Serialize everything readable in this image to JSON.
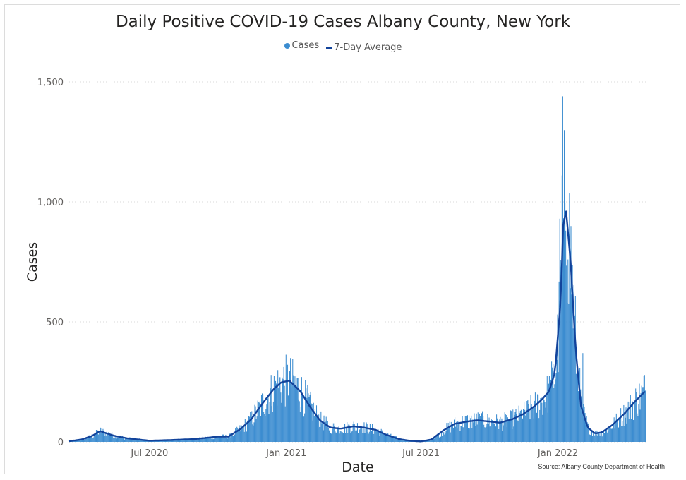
{
  "colors": {
    "bars": "#3B8CD0",
    "line": "#12439B",
    "grid": "#d9d9d9",
    "text": "#605E5C"
  },
  "legend": {
    "cases": "Cases",
    "avg": "7-Day Average"
  },
  "source": "Source: Albany County Department of Health",
  "chart_data": {
    "type": "bar",
    "title": "Daily Positive COVID-19 Cases Albany County, New York",
    "xlabel": "Date",
    "ylabel": "Cases",
    "ylim": [
      0,
      1500
    ],
    "yticks": [
      0,
      500,
      1000,
      1500
    ],
    "ytick_labels": [
      "0",
      "500",
      "1,000",
      "1,500"
    ],
    "xlim": [
      "2020-03-15",
      "2022-04-30"
    ],
    "xticks": [
      "2020-07-01",
      "2021-01-01",
      "2021-07-01",
      "2022-01-01"
    ],
    "xtick_labels": [
      "Jul 2020",
      "Jan 2021",
      "Jul 2021",
      "Jan 2022"
    ],
    "grid": "horizontal dotted",
    "legend_position": "top-center",
    "series": [
      {
        "name": "Cases",
        "type": "bar",
        "approx_from_7day_with_noise": true
      },
      {
        "name": "7-Day Average",
        "type": "line",
        "x": [
          "2020-03-15",
          "2020-04-01",
          "2020-04-15",
          "2020-04-25",
          "2020-05-15",
          "2020-06-01",
          "2020-07-01",
          "2020-08-01",
          "2020-09-01",
          "2020-10-01",
          "2020-10-15",
          "2020-11-01",
          "2020-11-15",
          "2020-12-01",
          "2020-12-15",
          "2020-12-25",
          "2021-01-05",
          "2021-01-20",
          "2021-02-01",
          "2021-02-15",
          "2021-03-01",
          "2021-03-15",
          "2021-04-01",
          "2021-04-15",
          "2021-05-01",
          "2021-05-15",
          "2021-06-01",
          "2021-06-15",
          "2021-07-01",
          "2021-07-15",
          "2021-08-01",
          "2021-08-15",
          "2021-09-01",
          "2021-09-15",
          "2021-10-01",
          "2021-10-15",
          "2021-11-01",
          "2021-11-15",
          "2021-12-01",
          "2021-12-10",
          "2021-12-20",
          "2021-12-28",
          "2022-01-05",
          "2022-01-08",
          "2022-01-12",
          "2022-01-18",
          "2022-01-25",
          "2022-02-01",
          "2022-02-10",
          "2022-02-20",
          "2022-03-01",
          "2022-03-15",
          "2022-04-01",
          "2022-04-15",
          "2022-04-28"
        ],
        "values": [
          3,
          10,
          25,
          45,
          25,
          15,
          5,
          8,
          12,
          22,
          22,
          55,
          95,
          165,
          220,
          248,
          255,
          210,
          150,
          90,
          60,
          55,
          65,
          60,
          50,
          30,
          12,
          5,
          2,
          10,
          50,
          75,
          85,
          90,
          85,
          80,
          95,
          115,
          150,
          175,
          210,
          290,
          600,
          900,
          960,
          750,
          380,
          150,
          60,
          35,
          40,
          70,
          120,
          170,
          210
        ]
      }
    ]
  }
}
